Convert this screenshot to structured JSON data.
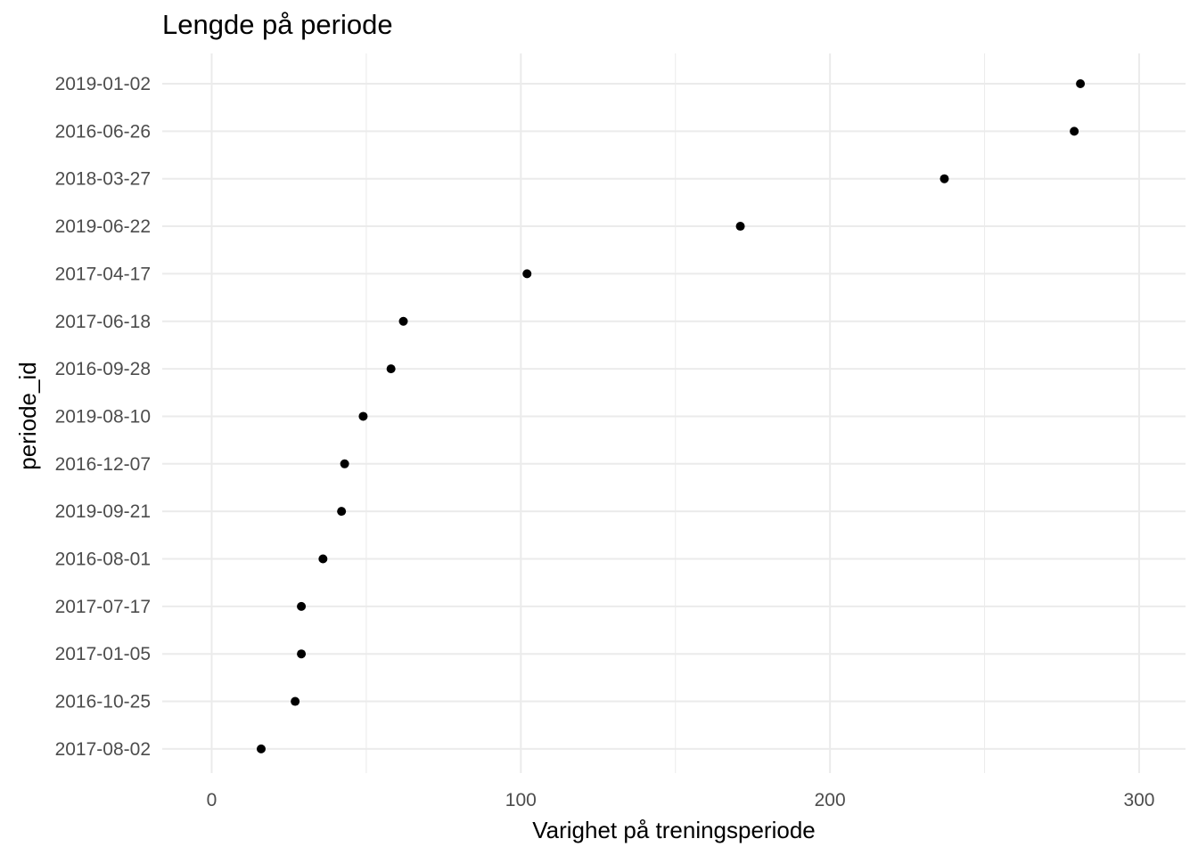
{
  "chart_data": {
    "type": "scatter",
    "title": "Lengde på periode",
    "xlabel": "Varighet på treningsperiode",
    "ylabel": "periode_id",
    "xlim": [
      -16,
      315
    ],
    "x_ticks": [
      0,
      100,
      200,
      300
    ],
    "x_minor_ticks": [
      50,
      150,
      250
    ],
    "grid": true,
    "point_color": "#000000",
    "grid_color": "#ebebeb",
    "categories": [
      "2019-01-02",
      "2016-06-26",
      "2018-03-27",
      "2019-06-22",
      "2017-04-17",
      "2017-06-18",
      "2016-09-28",
      "2019-08-10",
      "2016-12-07",
      "2019-09-21",
      "2016-08-01",
      "2017-07-17",
      "2017-01-05",
      "2016-10-25",
      "2017-08-02"
    ],
    "values": [
      281,
      279,
      237,
      171,
      102,
      62,
      58,
      49,
      43,
      42,
      36,
      29,
      29,
      27,
      16
    ]
  }
}
